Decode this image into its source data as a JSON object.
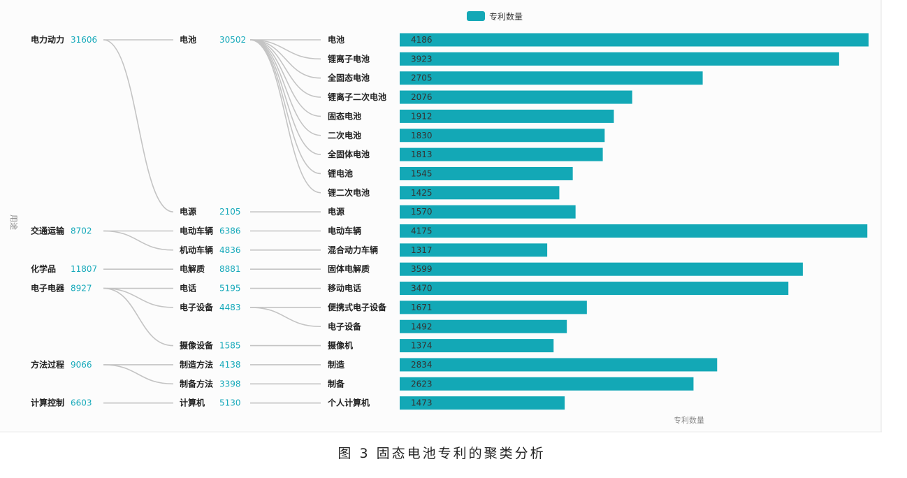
{
  "legend": {
    "label": "专利数量",
    "color": "#13a8b6"
  },
  "side_label": "用途",
  "x_axis_title": "专利数量",
  "caption": "图 3 固态电池专利的聚类分析",
  "colors": {
    "bar": "#13a8b6",
    "link": "#c4c4c4",
    "value_text": "#16a9ba"
  },
  "chart_data": {
    "type": "bar",
    "orientation": "horizontal",
    "title": "",
    "xlabel": "专利数量",
    "legend": [
      "专利数量"
    ],
    "legend_position": "top-center",
    "xlim": [
      0,
      4186
    ],
    "grid": false,
    "categories": [
      "电池",
      "锂离子电池",
      "全固态电池",
      "锂离子二次电池",
      "固态电池",
      "二次电池",
      "全固体电池",
      "锂电池",
      "锂二次电池",
      "电源",
      "电动车辆",
      "混合动力车辆",
      "固体电解质",
      "移动电话",
      "便携式电子设备",
      "电子设备",
      "摄像机",
      "制造",
      "制备",
      "个人计算机"
    ],
    "series": [
      {
        "name": "专利数量",
        "values": [
          4186,
          3923,
          2705,
          2076,
          1912,
          1830,
          1813,
          1545,
          1425,
          1570,
          4175,
          1317,
          3599,
          3470,
          1671,
          1492,
          1374,
          2834,
          2623,
          1473
        ]
      }
    ],
    "hierarchy": {
      "level1": [
        {
          "label": "电力动力",
          "value": "31606",
          "row": 0,
          "children": [
            0,
            1
          ]
        },
        {
          "label": "交通运输",
          "value": "8702",
          "row": 10,
          "children": [
            2,
            3
          ]
        },
        {
          "label": "化学品",
          "value": "11807",
          "row": 12,
          "children": [
            4
          ]
        },
        {
          "label": "电子电器",
          "value": "8927",
          "row": 13,
          "children": [
            5,
            6,
            7
          ]
        },
        {
          "label": "方法过程",
          "value": "9066",
          "row": 17,
          "children": [
            8,
            9
          ]
        },
        {
          "label": "计算控制",
          "value": "6603",
          "row": 19,
          "children": [
            10
          ]
        }
      ],
      "level2": [
        {
          "label": "电池",
          "value": "30502",
          "row": 0,
          "children": [
            0,
            1,
            2,
            3,
            4,
            5,
            6,
            7,
            8
          ]
        },
        {
          "label": "电源",
          "value": "2105",
          "row": 9,
          "children": [
            9
          ]
        },
        {
          "label": "电动车辆",
          "value": "6386",
          "row": 10,
          "children": [
            10
          ]
        },
        {
          "label": "机动车辆",
          "value": "4836",
          "row": 11,
          "children": [
            11
          ]
        },
        {
          "label": "电解质",
          "value": "8881",
          "row": 12,
          "children": [
            12
          ]
        },
        {
          "label": "电话",
          "value": "5195",
          "row": 13,
          "children": [
            13
          ]
        },
        {
          "label": "电子设备",
          "value": "4483",
          "row": 14,
          "children": [
            14,
            15
          ]
        },
        {
          "label": "摄像设备",
          "value": "1585",
          "row": 16,
          "children": [
            16
          ]
        },
        {
          "label": "制造方法",
          "value": "4138",
          "row": 17,
          "children": [
            17
          ]
        },
        {
          "label": "制备方法",
          "value": "3398",
          "row": 18,
          "children": [
            18
          ]
        },
        {
          "label": "计算机",
          "value": "5130",
          "row": 19,
          "children": [
            19
          ]
        }
      ]
    }
  }
}
